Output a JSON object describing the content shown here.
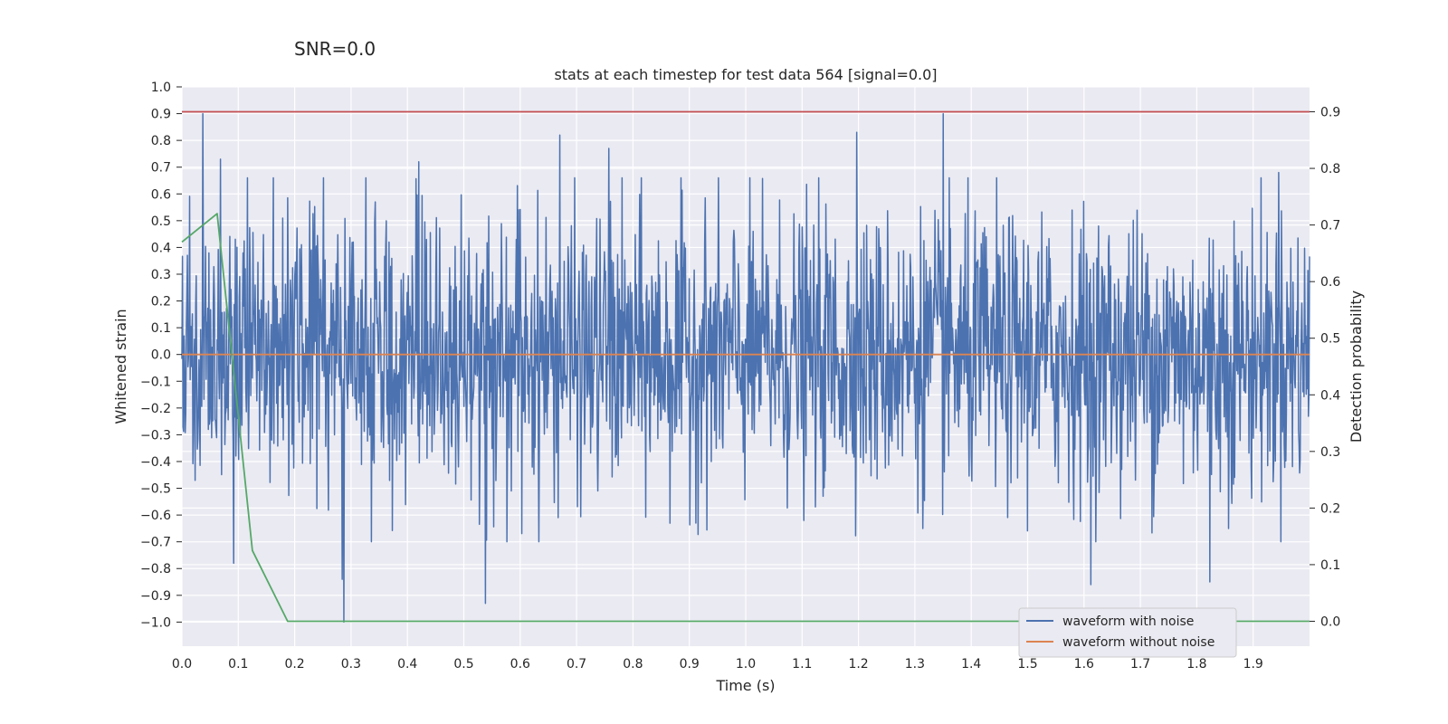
{
  "suptitle": "SNR=0.0",
  "chart_data": {
    "type": "line",
    "title": "stats at each timestep for test data 564 [signal=0.0]",
    "xlabel": "Time (s)",
    "ylabel": "Whitened strain",
    "y2label": "Detection probability",
    "xlim": [
      0.0,
      2.0
    ],
    "ylim": [
      -1.09,
      1.0
    ],
    "y2lim": [
      -0.044,
      0.944
    ],
    "x_ticks": [
      "0.0",
      "0.1",
      "0.2",
      "0.3",
      "0.4",
      "0.5",
      "0.6",
      "0.7",
      "0.8",
      "0.9",
      "1.0",
      "1.1",
      "1.2",
      "1.3",
      "1.4",
      "1.5",
      "1.6",
      "1.7",
      "1.8",
      "1.9"
    ],
    "y_ticks": [
      "1.0",
      "0.9",
      "0.8",
      "0.7",
      "0.6",
      "0.5",
      "0.4",
      "0.3",
      "0.2",
      "0.1",
      "0.0",
      "−0.1",
      "−0.2",
      "−0.3",
      "−0.4",
      "−0.5",
      "−0.6",
      "−0.7",
      "−0.8",
      "−0.9",
      "−1.0"
    ],
    "y2_ticks": [
      "0.9",
      "0.8",
      "0.7",
      "0.6",
      "0.5",
      "0.4",
      "0.3",
      "0.2",
      "0.1",
      "0.0"
    ],
    "grid": true,
    "legend": "lower-right",
    "series": [
      {
        "name": "waveform with noise",
        "color": "#4c72b0",
        "axis": "left",
        "kind": "noise",
        "n_samples": 2048,
        "x_range": [
          0.0,
          2.0
        ],
        "approx_range": [
          -1.0,
          0.9
        ],
        "typical_amplitude": 0.3,
        "spikes": [
          {
            "x": 0.037,
            "y": 0.9
          },
          {
            "x": 0.068,
            "y": 0.73
          },
          {
            "x": 0.092,
            "y": -0.78
          },
          {
            "x": 0.284,
            "y": -0.84
          },
          {
            "x": 0.287,
            "y": -1.0
          },
          {
            "x": 0.42,
            "y": 0.72
          },
          {
            "x": 0.538,
            "y": -0.93
          },
          {
            "x": 0.67,
            "y": 0.82
          },
          {
            "x": 0.757,
            "y": 0.77
          },
          {
            "x": 1.197,
            "y": 0.83
          },
          {
            "x": 1.35,
            "y": 0.9
          },
          {
            "x": 1.612,
            "y": -0.86
          },
          {
            "x": 1.823,
            "y": -0.85
          },
          {
            "x": 1.945,
            "y": 0.68
          }
        ]
      },
      {
        "name": "waveform without noise",
        "color": "#dd8452",
        "axis": "left",
        "x": [
          0.0,
          2.0
        ],
        "y": [
          0.0,
          0.0
        ]
      },
      {
        "name": "",
        "color": "#55a868",
        "axis": "right",
        "x": [
          0.0,
          0.0625,
          0.125,
          0.1875,
          0.25,
          2.0
        ],
        "y": [
          0.67,
          0.72,
          0.125,
          0.0,
          0.0,
          0.0
        ]
      },
      {
        "name": "",
        "color": "#c44e52",
        "axis": "right",
        "x": [
          0.0,
          2.0
        ],
        "y": [
          0.9,
          0.9
        ]
      }
    ]
  }
}
